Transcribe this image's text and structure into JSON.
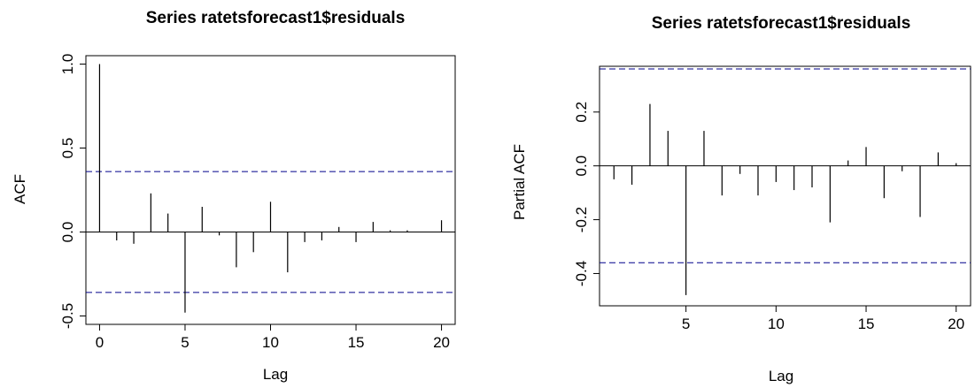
{
  "chart_data": [
    {
      "type": "bar",
      "title": "Series  ratetsforecast1$residuals",
      "xlabel": "Lag",
      "ylabel": "ACF",
      "xlim": [
        -0.8,
        20.8
      ],
      "ylim": [
        -0.55,
        1.05
      ],
      "x_ticks": [
        0,
        5,
        10,
        15,
        20
      ],
      "y_ticks": [
        -0.5,
        0.0,
        0.5,
        1.0
      ],
      "x_tick_labels": [
        "0",
        "5",
        "10",
        "15",
        "20"
      ],
      "y_tick_labels": [
        "-0.5",
        "0.0",
        "0.5",
        "1.0"
      ],
      "confidence_bound": 0.36,
      "confidence_color": "#00008B",
      "grid": false,
      "lags": [
        0,
        1,
        2,
        3,
        4,
        5,
        6,
        7,
        8,
        9,
        10,
        11,
        12,
        13,
        14,
        15,
        16,
        17,
        18,
        19,
        20
      ],
      "values": [
        1.0,
        -0.05,
        -0.07,
        0.23,
        0.11,
        -0.48,
        0.15,
        -0.02,
        -0.21,
        -0.12,
        0.18,
        -0.24,
        -0.06,
        -0.05,
        0.03,
        -0.06,
        0.06,
        0.01,
        0.01,
        0.0,
        0.07
      ]
    },
    {
      "type": "bar",
      "title": "Series  ratetsforecast1$residuals",
      "xlabel": "Lag",
      "ylabel": "Partial ACF",
      "xlim": [
        0.2,
        20.8
      ],
      "ylim": [
        -0.52,
        0.37
      ],
      "x_ticks": [
        5,
        10,
        15,
        20
      ],
      "y_ticks": [
        -0.4,
        -0.2,
        0.0,
        0.2
      ],
      "x_tick_labels": [
        "5",
        "10",
        "15",
        "20"
      ],
      "y_tick_labels": [
        "-0.4",
        "-0.2",
        "0.0",
        "0.2"
      ],
      "confidence_bound": 0.36,
      "confidence_color": "#00008B",
      "grid": false,
      "lags": [
        1,
        2,
        3,
        4,
        5,
        6,
        7,
        8,
        9,
        10,
        11,
        12,
        13,
        14,
        15,
        16,
        17,
        18,
        19,
        20
      ],
      "values": [
        -0.05,
        -0.07,
        0.23,
        0.13,
        -0.48,
        0.13,
        -0.11,
        -0.03,
        -0.11,
        -0.06,
        -0.09,
        -0.08,
        -0.21,
        0.02,
        0.07,
        -0.12,
        -0.02,
        -0.19,
        0.05,
        0.01
      ]
    }
  ]
}
